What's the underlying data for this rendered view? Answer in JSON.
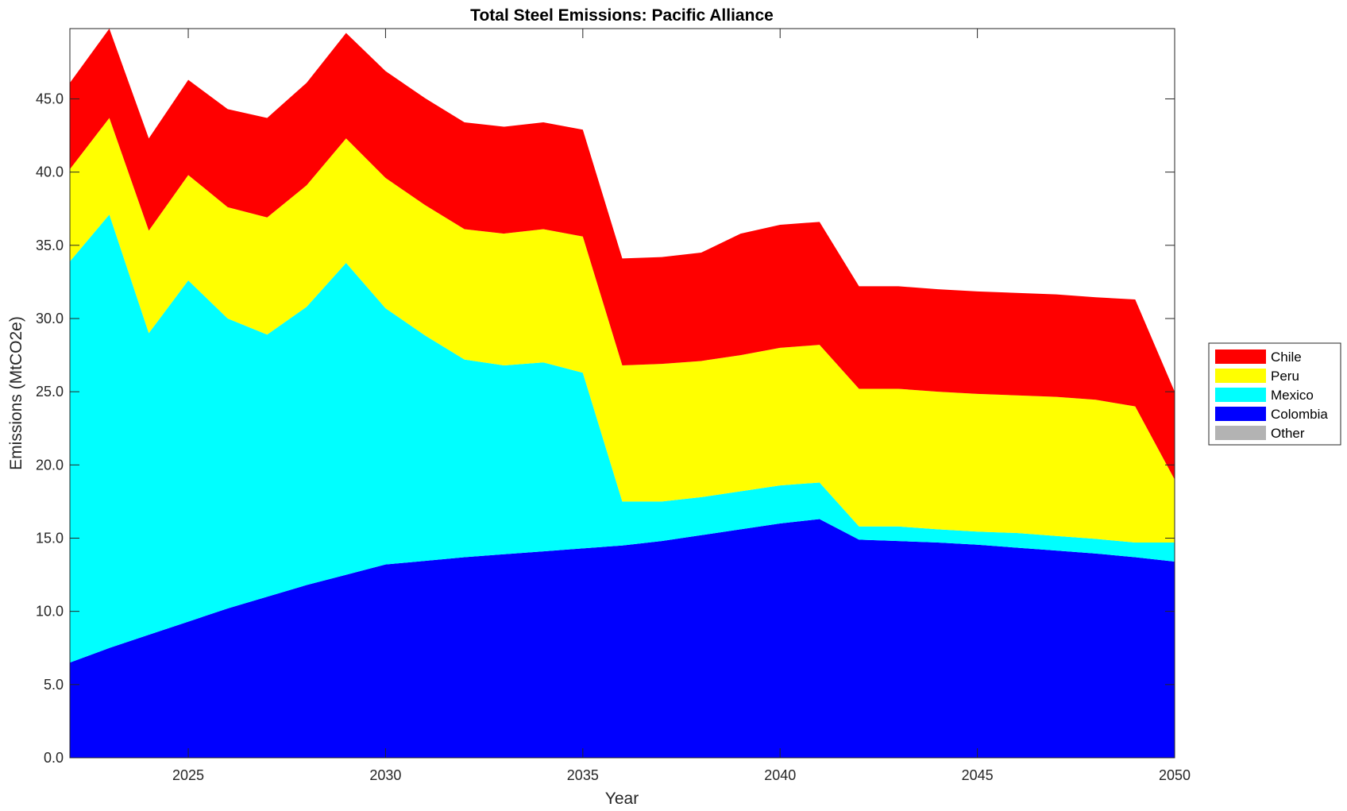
{
  "chart_data": {
    "type": "area",
    "title": "Total Steel Emissions: Pacific Alliance",
    "xlabel": "Year",
    "ylabel": "Emissions (MtCO2e)",
    "xlim": [
      2022,
      2050
    ],
    "ylim": [
      0,
      49.8
    ],
    "xticks": [
      "2025",
      "2030",
      "2035",
      "2040",
      "2045",
      "2050"
    ],
    "yticks": [
      "0.0",
      "5.0",
      "10.0",
      "15.0",
      "20.0",
      "25.0",
      "30.0",
      "35.0",
      "40.0",
      "45.0"
    ],
    "grid": false,
    "stacked": true,
    "legend_position": "right",
    "x": [
      2022,
      2023,
      2024,
      2025,
      2026,
      2027,
      2028,
      2029,
      2030,
      2031,
      2032,
      2033,
      2034,
      2035,
      2036,
      2037,
      2038,
      2039,
      2040,
      2041,
      2042,
      2043,
      2044,
      2045,
      2046,
      2047,
      2048,
      2049,
      2050
    ],
    "series": [
      {
        "name": "Other",
        "color": "#b3b3b3",
        "values": [
          0,
          0,
          0,
          0,
          0,
          0,
          0,
          0,
          0,
          0,
          0,
          0,
          0,
          0,
          0,
          0,
          0,
          0,
          0,
          0,
          0,
          0,
          0,
          0,
          0,
          0,
          0,
          0,
          0
        ]
      },
      {
        "name": "Colombia",
        "color": "#0000ff",
        "values": [
          6.5,
          7.5,
          8.4,
          9.3,
          10.2,
          11.0,
          11.8,
          12.5,
          13.2,
          13.45,
          13.7,
          13.9,
          14.1,
          14.3,
          14.5,
          14.8,
          15.2,
          15.6,
          16.0,
          16.3,
          14.9,
          14.8,
          14.7,
          14.55,
          14.35,
          14.15,
          13.95,
          13.7,
          13.4
        ]
      },
      {
        "name": "Mexico",
        "color": "#00ffff",
        "values": [
          27.4,
          29.6,
          20.6,
          23.3,
          19.8,
          17.9,
          19.0,
          21.3,
          17.5,
          15.4,
          13.5,
          12.9,
          12.9,
          12.0,
          3.0,
          2.7,
          2.6,
          2.6,
          2.6,
          2.5,
          0.9,
          1.0,
          0.9,
          0.9,
          1.0,
          1.0,
          1.0,
          1.0,
          1.3
        ]
      },
      {
        "name": "Peru",
        "color": "#ffff00",
        "values": [
          6.3,
          6.6,
          7.0,
          7.2,
          7.6,
          8.0,
          8.3,
          8.5,
          8.9,
          8.9,
          8.9,
          9.0,
          9.1,
          9.3,
          9.3,
          9.4,
          9.3,
          9.3,
          9.4,
          9.4,
          9.4,
          9.4,
          9.4,
          9.4,
          9.4,
          9.5,
          9.5,
          9.3,
          4.3
        ]
      },
      {
        "name": "Chile",
        "color": "#ff0000",
        "values": [
          5.9,
          6.1,
          6.3,
          6.5,
          6.7,
          6.8,
          7.0,
          7.2,
          7.3,
          7.3,
          7.3,
          7.3,
          7.3,
          7.3,
          7.3,
          7.3,
          7.4,
          8.3,
          8.4,
          8.4,
          7.0,
          7.0,
          7.0,
          7.0,
          7.0,
          7.0,
          7.0,
          7.3,
          6.0
        ]
      }
    ],
    "legend": [
      "Chile",
      "Peru",
      "Mexico",
      "Colombia",
      "Other"
    ]
  }
}
